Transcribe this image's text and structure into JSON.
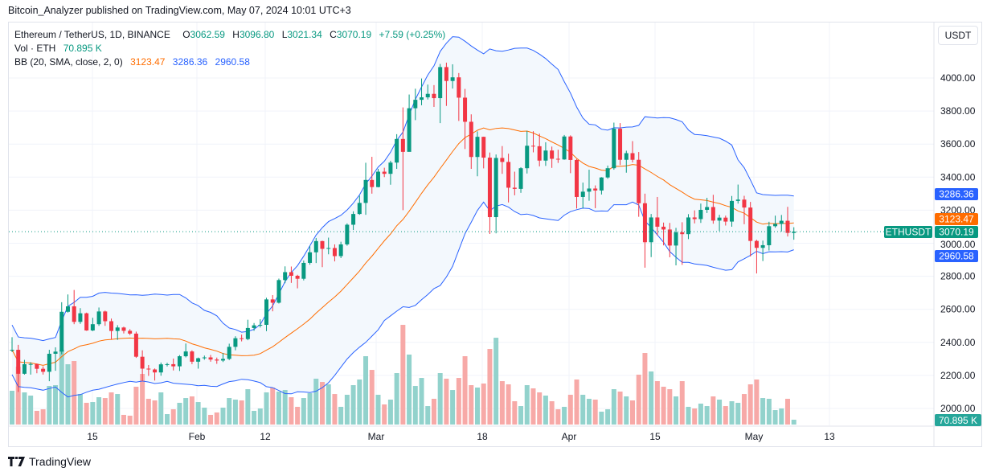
{
  "publisher": "Bitcoin_Analyzer published on TradingView.com, May 07, 2024 10:01 UTC+3",
  "legend": {
    "symbol": "Ethereum / TetherUS, 1D, BINANCE",
    "o_label": "O",
    "o": "3062.59",
    "h_label": "H",
    "h": "3096.80",
    "l_label": "L",
    "l": "3021.34",
    "c_label": "C",
    "c": "3070.19",
    "change": "+7.59 (+0.25%)",
    "vol_label": "Vol · ETH",
    "vol": "70.895 K",
    "bb_label": "BB (20, SMA, close, 2, 0)",
    "bb_basis": "3123.47",
    "bb_upper": "3286.36",
    "bb_lower": "2960.58"
  },
  "currency_button": "USDT",
  "footer_brand": "TradingView",
  "colors": {
    "up": "#089981",
    "down": "#f23645",
    "vol_up": "#92d2cc",
    "vol_down": "#f7a9a7",
    "bb_basis": "#ff6d00",
    "bb_band": "#2962ff",
    "bb_fill": "#f3f8fd"
  },
  "price_axis": {
    "ticks": [
      "4000.00",
      "3800.00",
      "3600.00",
      "3400.00",
      "3200.00",
      "3000.00",
      "2800.00",
      "2600.00",
      "2400.00",
      "2200.00",
      "2000.00"
    ]
  },
  "time_axis": {
    "labels": [
      "15",
      "Feb",
      "12",
      "Mar",
      "18",
      "Apr",
      "15",
      "May",
      "13"
    ]
  },
  "tags": {
    "symbol": "ETHUSDT",
    "last": "3070.19",
    "upper": "3286.36",
    "basis": "3123.47",
    "lower": "2960.58",
    "volume": "70.895 K"
  },
  "chart_data": {
    "type": "candlestick",
    "symbol": "ETHUSDT",
    "timeframe": "1D",
    "ylim": [
      1900,
      4250
    ],
    "grid": true,
    "indicators": [
      "Bollinger Bands (20, SMA, close, 2, 0)",
      "Volume"
    ],
    "dates": [
      "2024-01-02",
      "2024-01-03",
      "2024-01-04",
      "2024-01-05",
      "2024-01-06",
      "2024-01-07",
      "2024-01-08",
      "2024-01-09",
      "2024-01-10",
      "2024-01-11",
      "2024-01-12",
      "2024-01-13",
      "2024-01-14",
      "2024-01-15",
      "2024-01-16",
      "2024-01-17",
      "2024-01-18",
      "2024-01-19",
      "2024-01-20",
      "2024-01-21",
      "2024-01-22",
      "2024-01-23",
      "2024-01-24",
      "2024-01-25",
      "2024-01-26",
      "2024-01-27",
      "2024-01-28",
      "2024-01-29",
      "2024-01-30",
      "2024-01-31",
      "2024-02-01",
      "2024-02-02",
      "2024-02-03",
      "2024-02-04",
      "2024-02-05",
      "2024-02-06",
      "2024-02-07",
      "2024-02-08",
      "2024-02-09",
      "2024-02-10",
      "2024-02-11",
      "2024-02-12",
      "2024-02-13",
      "2024-02-14",
      "2024-02-15",
      "2024-02-16",
      "2024-02-17",
      "2024-02-18",
      "2024-02-19",
      "2024-02-20",
      "2024-02-21",
      "2024-02-22",
      "2024-02-23",
      "2024-02-24",
      "2024-02-25",
      "2024-02-26",
      "2024-02-27",
      "2024-02-28",
      "2024-02-29",
      "2024-03-01",
      "2024-03-02",
      "2024-03-03",
      "2024-03-04",
      "2024-03-05",
      "2024-03-06",
      "2024-03-07",
      "2024-03-08",
      "2024-03-09",
      "2024-03-10",
      "2024-03-11",
      "2024-03-12",
      "2024-03-13",
      "2024-03-14",
      "2024-03-15",
      "2024-03-16",
      "2024-03-17",
      "2024-03-18",
      "2024-03-19",
      "2024-03-20",
      "2024-03-21",
      "2024-03-22",
      "2024-03-23",
      "2024-03-24",
      "2024-03-25",
      "2024-03-26",
      "2024-03-27",
      "2024-03-28",
      "2024-03-29",
      "2024-03-30",
      "2024-03-31",
      "2024-04-01",
      "2024-04-02",
      "2024-04-03",
      "2024-04-04",
      "2024-04-05",
      "2024-04-06",
      "2024-04-07",
      "2024-04-08",
      "2024-04-09",
      "2024-04-10",
      "2024-04-11",
      "2024-04-12",
      "2024-04-13",
      "2024-04-14",
      "2024-04-15",
      "2024-04-16",
      "2024-04-17",
      "2024-04-18",
      "2024-04-19",
      "2024-04-20",
      "2024-04-21",
      "2024-04-22",
      "2024-04-23",
      "2024-04-24",
      "2024-04-25",
      "2024-04-26",
      "2024-04-27",
      "2024-04-28",
      "2024-04-29",
      "2024-04-30",
      "2024-05-01",
      "2024-05-02",
      "2024-05-03",
      "2024-05-04",
      "2024-05-05",
      "2024-05-06",
      "2024-05-07"
    ],
    "ohlc": [
      [
        2352,
        2431,
        2341,
        2355
      ],
      [
        2355,
        2385,
        2100,
        2210
      ],
      [
        2210,
        2294,
        2205,
        2268
      ],
      [
        2268,
        2280,
        2205,
        2269
      ],
      [
        2269,
        2272,
        2213,
        2240
      ],
      [
        2240,
        2255,
        2205,
        2222
      ],
      [
        2222,
        2355,
        2165,
        2331
      ],
      [
        2331,
        2370,
        2228,
        2344
      ],
      [
        2344,
        2643,
        2328,
        2585
      ],
      [
        2585,
        2690,
        2580,
        2618
      ],
      [
        2618,
        2717,
        2510,
        2524
      ],
      [
        2524,
        2607,
        2512,
        2576
      ],
      [
        2576,
        2580,
        2470,
        2472
      ],
      [
        2472,
        2549,
        2468,
        2510
      ],
      [
        2510,
        2611,
        2500,
        2587
      ],
      [
        2587,
        2592,
        2500,
        2528
      ],
      [
        2528,
        2544,
        2418,
        2469
      ],
      [
        2469,
        2504,
        2415,
        2490
      ],
      [
        2490,
        2495,
        2454,
        2470
      ],
      [
        2470,
        2480,
        2444,
        2453
      ],
      [
        2453,
        2465,
        2306,
        2313
      ],
      [
        2313,
        2352,
        2165,
        2241
      ],
      [
        2241,
        2263,
        2197,
        2236
      ],
      [
        2236,
        2242,
        2169,
        2218
      ],
      [
        2218,
        2278,
        2198,
        2267
      ],
      [
        2267,
        2277,
        2254,
        2268
      ],
      [
        2268,
        2302,
        2230,
        2255
      ],
      [
        2255,
        2323,
        2227,
        2316
      ],
      [
        2316,
        2393,
        2309,
        2345
      ],
      [
        2345,
        2352,
        2268,
        2283
      ],
      [
        2283,
        2308,
        2241,
        2304
      ],
      [
        2304,
        2320,
        2295,
        2309
      ],
      [
        2309,
        2324,
        2283,
        2296
      ],
      [
        2296,
        2308,
        2270,
        2290
      ],
      [
        2290,
        2336,
        2281,
        2300
      ],
      [
        2300,
        2392,
        2293,
        2373
      ],
      [
        2373,
        2437,
        2352,
        2425
      ],
      [
        2425,
        2447,
        2406,
        2420
      ],
      [
        2420,
        2537,
        2413,
        2487
      ],
      [
        2487,
        2517,
        2470,
        2503
      ],
      [
        2503,
        2540,
        2490,
        2506
      ],
      [
        2506,
        2670,
        2468,
        2660
      ],
      [
        2660,
        2686,
        2588,
        2640
      ],
      [
        2640,
        2786,
        2635,
        2777
      ],
      [
        2777,
        2860,
        2758,
        2825
      ],
      [
        2825,
        2859,
        2760,
        2803
      ],
      [
        2803,
        2809,
        2727,
        2785
      ],
      [
        2785,
        2895,
        2775,
        2881
      ],
      [
        2881,
        2982,
        2870,
        2945
      ],
      [
        2945,
        3032,
        2880,
        3013
      ],
      [
        3013,
        3015,
        2855,
        2966
      ],
      [
        2966,
        3034,
        2933,
        2971
      ],
      [
        2971,
        2993,
        2890,
        2922
      ],
      [
        2922,
        3009,
        2910,
        2993
      ],
      [
        2993,
        3120,
        2985,
        3112
      ],
      [
        3112,
        3193,
        3080,
        3177
      ],
      [
        3177,
        3288,
        3172,
        3244
      ],
      [
        3244,
        3487,
        3172,
        3383
      ],
      [
        3383,
        3523,
        3300,
        3340
      ],
      [
        3340,
        3450,
        3338,
        3433
      ],
      [
        3433,
        3457,
        3400,
        3420
      ],
      [
        3420,
        3499,
        3354,
        3488
      ],
      [
        3488,
        3660,
        3450,
        3631
      ],
      [
        3631,
        3822,
        3200,
        3553
      ],
      [
        3553,
        3900,
        3555,
        3817
      ],
      [
        3817,
        3935,
        3745,
        3868
      ],
      [
        3868,
        3997,
        3835,
        3883
      ],
      [
        3883,
        3960,
        3870,
        3904
      ],
      [
        3904,
        3957,
        3825,
        3878
      ],
      [
        3878,
        4085,
        3727,
        4066
      ],
      [
        4066,
        4093,
        3831,
        3982
      ],
      [
        3982,
        4083,
        3936,
        4004
      ],
      [
        4004,
        4030,
        3740,
        3881
      ],
      [
        3881,
        3934,
        3570,
        3735
      ],
      [
        3735,
        3780,
        3450,
        3522
      ],
      [
        3522,
        3677,
        3405,
        3644
      ],
      [
        3644,
        3645,
        3453,
        3518
      ],
      [
        3518,
        3549,
        3056,
        3158
      ],
      [
        3158,
        3537,
        3060,
        3516
      ],
      [
        3516,
        3588,
        3420,
        3492
      ],
      [
        3492,
        3542,
        3247,
        3336
      ],
      [
        3336,
        3433,
        3290,
        3329
      ],
      [
        3329,
        3460,
        3305,
        3454
      ],
      [
        3454,
        3680,
        3422,
        3590
      ],
      [
        3590,
        3678,
        3550,
        3587
      ],
      [
        3587,
        3663,
        3465,
        3500
      ],
      [
        3500,
        3611,
        3468,
        3561
      ],
      [
        3561,
        3585,
        3456,
        3511
      ],
      [
        3511,
        3566,
        3486,
        3507
      ],
      [
        3507,
        3655,
        3505,
        3646
      ],
      [
        3646,
        3653,
        3424,
        3504
      ],
      [
        3504,
        3509,
        3210,
        3280
      ],
      [
        3280,
        3367,
        3212,
        3312
      ],
      [
        3312,
        3445,
        3257,
        3331
      ],
      [
        3331,
        3350,
        3212,
        3319
      ],
      [
        3319,
        3400,
        3295,
        3398
      ],
      [
        3398,
        3470,
        3390,
        3454
      ],
      [
        3454,
        3730,
        3445,
        3693
      ],
      [
        3693,
        3727,
        3473,
        3505
      ],
      [
        3505,
        3560,
        3427,
        3545
      ],
      [
        3545,
        3618,
        3489,
        3505
      ],
      [
        3505,
        3552,
        3160,
        3242
      ],
      [
        3242,
        3300,
        2852,
        3006
      ],
      [
        3006,
        3177,
        2916,
        3156
      ],
      [
        3156,
        3280,
        3047,
        3100
      ],
      [
        3100,
        3125,
        2987,
        3083
      ],
      [
        3083,
        3123,
        2915,
        2986
      ],
      [
        2986,
        3093,
        2866,
        3066
      ],
      [
        3066,
        3127,
        2869,
        3055
      ],
      [
        3055,
        3176,
        3025,
        3156
      ],
      [
        3156,
        3199,
        3120,
        3146
      ],
      [
        3146,
        3240,
        3123,
        3202
      ],
      [
        3202,
        3275,
        3183,
        3219
      ],
      [
        3219,
        3293,
        3118,
        3137
      ],
      [
        3137,
        3172,
        3074,
        3155
      ],
      [
        3155,
        3167,
        3107,
        3131
      ],
      [
        3131,
        3286,
        3100,
        3256
      ],
      [
        3256,
        3355,
        3240,
        3264
      ],
      [
        3264,
        3287,
        3115,
        3216
      ],
      [
        3216,
        3250,
        2920,
        3014
      ],
      [
        3014,
        3021,
        2817,
        2972
      ],
      [
        2972,
        3016,
        2892,
        2988
      ],
      [
        2988,
        3130,
        2956,
        3103
      ],
      [
        3103,
        3167,
        3094,
        3117
      ],
      [
        3117,
        3171,
        3071,
        3136
      ],
      [
        3136,
        3220,
        3041,
        3062.59
      ],
      [
        3062.59,
        3096.8,
        3021.34,
        3070.19
      ]
    ],
    "volume_k": [
      496,
      850,
      472,
      425,
      201,
      224,
      566,
      578,
      1097,
      885,
      932,
      448,
      319,
      330,
      401,
      389,
      472,
      448,
      142,
      130,
      555,
      743,
      378,
      354,
      472,
      153,
      224,
      319,
      389,
      413,
      330,
      248,
      142,
      177,
      248,
      389,
      366,
      354,
      519,
      201,
      236,
      472,
      543,
      484,
      507,
      401,
      260,
      389,
      460,
      673,
      625,
      590,
      448,
      260,
      437,
      578,
      661,
      1003,
      802,
      437,
      295,
      366,
      755,
      1463,
      1027,
      566,
      684,
      271,
      378,
      755,
      673,
      507,
      684,
      1003,
      578,
      543,
      602,
      1109,
      1274,
      637,
      590,
      342,
      271,
      578,
      531,
      472,
      425,
      342,
      224,
      260,
      437,
      661,
      437,
      378,
      366,
      189,
      224,
      519,
      484,
      413,
      354,
      732,
      1050,
      779,
      637,
      555,
      519,
      413,
      637,
      260,
      236,
      307,
      271,
      413,
      366,
      271,
      342,
      319,
      448,
      590,
      661,
      389,
      378,
      212,
      236,
      378,
      70.895
    ]
  }
}
